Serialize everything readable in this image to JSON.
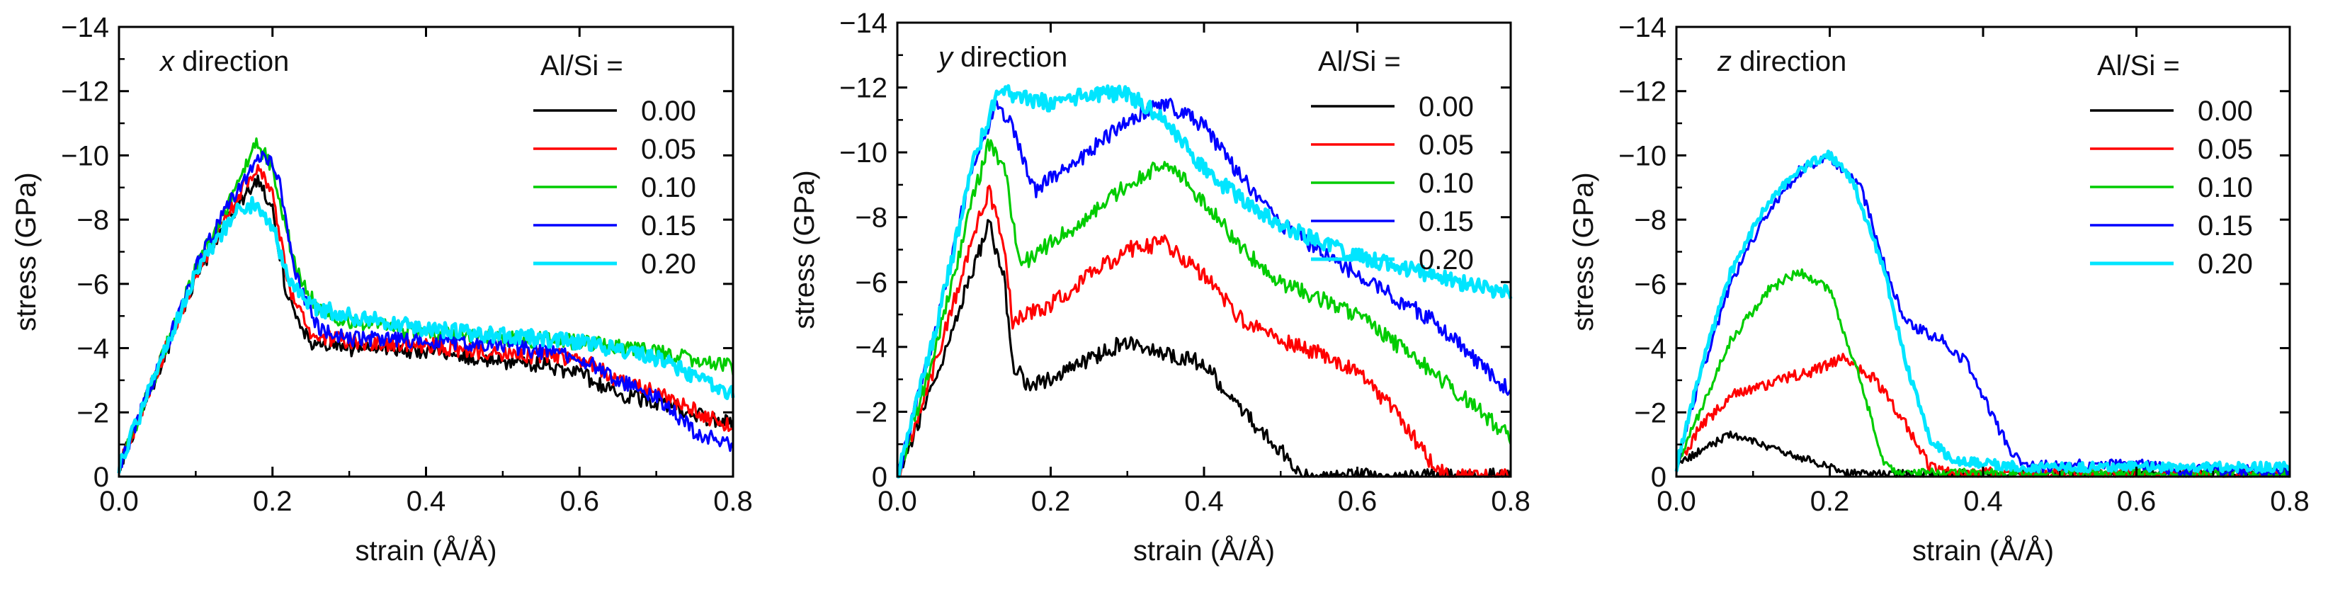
{
  "chart_data": [
    {
      "type": "line",
      "title_var": "x",
      "title_rest": " direction",
      "xlabel": "strain (Å/Å)",
      "ylabel": "stress (GPa)",
      "xlim": [
        0,
        0.8
      ],
      "ylim": [
        0,
        -14
      ],
      "xticks": [
        0.0,
        0.2,
        0.4,
        0.6,
        0.8
      ],
      "xtick_labels": [
        "0.0",
        "0.2",
        "0.4",
        "0.6",
        "0.8"
      ],
      "yticks": [
        0,
        -2,
        -4,
        -6,
        -8,
        -10,
        -12,
        -14
      ],
      "ytick_labels": [
        "0",
        "−2",
        "−4",
        "−6",
        "−8",
        "−10",
        "−12",
        "−14"
      ],
      "legend_title": "Al/Si =",
      "legend_position": "top-right",
      "series": [
        {
          "name": "0.00",
          "color": "#000000",
          "noise": 0.25,
          "points": [
            [
              0,
              -0.3
            ],
            [
              0.05,
              -3.2
            ],
            [
              0.1,
              -6.2
            ],
            [
              0.15,
              -8.3
            ],
            [
              0.18,
              -9.2
            ],
            [
              0.2,
              -8.3
            ],
            [
              0.22,
              -5.5
            ],
            [
              0.25,
              -4.2
            ],
            [
              0.3,
              -4.0
            ],
            [
              0.4,
              -3.9
            ],
            [
              0.5,
              -3.6
            ],
            [
              0.55,
              -3.5
            ],
            [
              0.6,
              -3.2
            ],
            [
              0.65,
              -2.6
            ],
            [
              0.7,
              -2.3
            ],
            [
              0.8,
              -1.6
            ]
          ]
        },
        {
          "name": "0.05",
          "color": "#ff0000",
          "noise": 0.25,
          "points": [
            [
              0,
              -0.3
            ],
            [
              0.05,
              -3.3
            ],
            [
              0.1,
              -6.3
            ],
            [
              0.15,
              -8.5
            ],
            [
              0.18,
              -9.7
            ],
            [
              0.2,
              -8.8
            ],
            [
              0.22,
              -6.0
            ],
            [
              0.25,
              -4.4
            ],
            [
              0.3,
              -4.2
            ],
            [
              0.4,
              -4.1
            ],
            [
              0.5,
              -3.8
            ],
            [
              0.6,
              -3.7
            ],
            [
              0.65,
              -3.0
            ],
            [
              0.7,
              -2.6
            ],
            [
              0.8,
              -1.5
            ]
          ]
        },
        {
          "name": "0.10",
          "color": "#00cc00",
          "noise": 0.25,
          "points": [
            [
              0,
              -0.3
            ],
            [
              0.05,
              -3.3
            ],
            [
              0.1,
              -6.5
            ],
            [
              0.15,
              -8.8
            ],
            [
              0.18,
              -10.4
            ],
            [
              0.2,
              -9.6
            ],
            [
              0.23,
              -6.5
            ],
            [
              0.26,
              -5.2
            ],
            [
              0.3,
              -4.8
            ],
            [
              0.4,
              -4.5
            ],
            [
              0.5,
              -4.3
            ],
            [
              0.6,
              -4.2
            ],
            [
              0.7,
              -3.9
            ],
            [
              0.8,
              -3.4
            ]
          ]
        },
        {
          "name": "0.15",
          "color": "#0000ff",
          "noise": 0.25,
          "points": [
            [
              0,
              -0.3
            ],
            [
              0.05,
              -3.3
            ],
            [
              0.1,
              -6.5
            ],
            [
              0.15,
              -8.8
            ],
            [
              0.19,
              -10.1
            ],
            [
              0.21,
              -9.1
            ],
            [
              0.23,
              -6.2
            ],
            [
              0.26,
              -4.6
            ],
            [
              0.3,
              -4.3
            ],
            [
              0.4,
              -4.2
            ],
            [
              0.5,
              -4.1
            ],
            [
              0.6,
              -3.7
            ],
            [
              0.65,
              -3.0
            ],
            [
              0.7,
              -2.5
            ],
            [
              0.75,
              -1.4
            ],
            [
              0.8,
              -0.9
            ]
          ]
        },
        {
          "name": "0.20",
          "color": "#00e5ff",
          "noise": 0.25,
          "points": [
            [
              0,
              -0.3
            ],
            [
              0.05,
              -3.3
            ],
            [
              0.1,
              -6.3
            ],
            [
              0.15,
              -8.2
            ],
            [
              0.18,
              -8.5
            ],
            [
              0.2,
              -7.8
            ],
            [
              0.22,
              -6.2
            ],
            [
              0.25,
              -5.3
            ],
            [
              0.3,
              -5.0
            ],
            [
              0.4,
              -4.6
            ],
            [
              0.5,
              -4.4
            ],
            [
              0.6,
              -4.2
            ],
            [
              0.7,
              -3.7
            ],
            [
              0.8,
              -2.6
            ]
          ]
        }
      ]
    },
    {
      "type": "line",
      "title_var": "y",
      "title_rest": " direction",
      "xlabel": "strain (Å/Å)",
      "ylabel": "stress (GPa)",
      "xlim": [
        0,
        0.8
      ],
      "ylim": [
        0,
        -14
      ],
      "xticks": [
        0.0,
        0.2,
        0.4,
        0.6,
        0.8
      ],
      "xtick_labels": [
        "0.0",
        "0.2",
        "0.4",
        "0.6",
        "0.8"
      ],
      "yticks": [
        0,
        -2,
        -4,
        -6,
        -8,
        -10,
        -12,
        -14
      ],
      "ytick_labels": [
        "0",
        "−2",
        "−4",
        "−6",
        "−8",
        "−10",
        "−12",
        "−14"
      ],
      "legend_title": "Al/Si =",
      "legend_position": "top-right",
      "series": [
        {
          "name": "0.00",
          "color": "#000000",
          "noise": 0.25,
          "points": [
            [
              0,
              0
            ],
            [
              0.05,
              -3.0
            ],
            [
              0.1,
              -6.5
            ],
            [
              0.12,
              -7.8
            ],
            [
              0.14,
              -6.0
            ],
            [
              0.15,
              -3.5
            ],
            [
              0.17,
              -2.8
            ],
            [
              0.2,
              -3.0
            ],
            [
              0.25,
              -3.6
            ],
            [
              0.3,
              -4.2
            ],
            [
              0.35,
              -3.8
            ],
            [
              0.4,
              -3.5
            ],
            [
              0.45,
              -2.0
            ],
            [
              0.5,
              -0.8
            ],
            [
              0.53,
              0
            ],
            [
              0.8,
              0
            ]
          ]
        },
        {
          "name": "0.05",
          "color": "#ff0000",
          "noise": 0.25,
          "points": [
            [
              0,
              0
            ],
            [
              0.05,
              -3.5
            ],
            [
              0.1,
              -7.5
            ],
            [
              0.12,
              -8.8
            ],
            [
              0.14,
              -7.0
            ],
            [
              0.15,
              -4.8
            ],
            [
              0.2,
              -5.3
            ],
            [
              0.25,
              -6.2
            ],
            [
              0.3,
              -7.0
            ],
            [
              0.35,
              -7.2
            ],
            [
              0.4,
              -6.2
            ],
            [
              0.45,
              -4.8
            ],
            [
              0.5,
              -4.2
            ],
            [
              0.55,
              -3.8
            ],
            [
              0.6,
              -3.2
            ],
            [
              0.65,
              -2.0
            ],
            [
              0.7,
              -0.3
            ],
            [
              0.72,
              0
            ],
            [
              0.8,
              0
            ]
          ]
        },
        {
          "name": "0.10",
          "color": "#00cc00",
          "noise": 0.25,
          "points": [
            [
              0,
              0
            ],
            [
              0.05,
              -4.0
            ],
            [
              0.1,
              -8.7
            ],
            [
              0.12,
              -10.3
            ],
            [
              0.14,
              -9.5
            ],
            [
              0.16,
              -6.5
            ],
            [
              0.2,
              -7.2
            ],
            [
              0.25,
              -8.0
            ],
            [
              0.3,
              -9.0
            ],
            [
              0.35,
              -9.7
            ],
            [
              0.4,
              -8.5
            ],
            [
              0.45,
              -7.0
            ],
            [
              0.5,
              -6.0
            ],
            [
              0.6,
              -5.0
            ],
            [
              0.7,
              -3.2
            ],
            [
              0.75,
              -2.2
            ],
            [
              0.8,
              -1.2
            ]
          ]
        },
        {
          "name": "0.15",
          "color": "#0000ff",
          "noise": 0.25,
          "points": [
            [
              0,
              0
            ],
            [
              0.05,
              -4.5
            ],
            [
              0.1,
              -9.8
            ],
            [
              0.13,
              -11.5
            ],
            [
              0.15,
              -10.8
            ],
            [
              0.18,
              -8.8
            ],
            [
              0.2,
              -9.2
            ],
            [
              0.25,
              -10.0
            ],
            [
              0.3,
              -11.0
            ],
            [
              0.35,
              -11.5
            ],
            [
              0.4,
              -10.8
            ],
            [
              0.45,
              -9.2
            ],
            [
              0.5,
              -7.8
            ],
            [
              0.55,
              -7.0
            ],
            [
              0.6,
              -6.2
            ],
            [
              0.7,
              -4.8
            ],
            [
              0.8,
              -2.6
            ]
          ]
        },
        {
          "name": "0.20",
          "color": "#00e5ff",
          "noise": 0.25,
          "points": [
            [
              0,
              0
            ],
            [
              0.05,
              -4.5
            ],
            [
              0.1,
              -9.8
            ],
            [
              0.13,
              -11.8
            ],
            [
              0.15,
              -11.8
            ],
            [
              0.2,
              -11.5
            ],
            [
              0.25,
              -11.8
            ],
            [
              0.3,
              -11.8
            ],
            [
              0.35,
              -11.0
            ],
            [
              0.4,
              -9.5
            ],
            [
              0.45,
              -8.5
            ],
            [
              0.5,
              -7.8
            ],
            [
              0.55,
              -7.2
            ],
            [
              0.6,
              -6.8
            ],
            [
              0.7,
              -6.2
            ],
            [
              0.8,
              -5.6
            ]
          ]
        }
      ]
    },
    {
      "type": "line",
      "title_var": "z",
      "title_rest": " direction",
      "xlabel": "strain (Å/Å)",
      "ylabel": "stress (GPa)",
      "xlim": [
        0,
        0.8
      ],
      "ylim": [
        0,
        -14
      ],
      "xticks": [
        0.0,
        0.2,
        0.4,
        0.6,
        0.8
      ],
      "xtick_labels": [
        "0.0",
        "0.2",
        "0.4",
        "0.6",
        "0.8"
      ],
      "yticks": [
        0,
        -2,
        -4,
        -6,
        -8,
        -10,
        -12,
        -14
      ],
      "ytick_labels": [
        "0",
        "−2",
        "−4",
        "−6",
        "−8",
        "−10",
        "−12",
        "−14"
      ],
      "legend_title": "Al/Si =",
      "legend_position": "top-right",
      "series": [
        {
          "name": "0.00",
          "color": "#000000",
          "noise": 0.12,
          "points": [
            [
              0,
              -0.3
            ],
            [
              0.03,
              -0.8
            ],
            [
              0.07,
              -1.3
            ],
            [
              0.1,
              -1.1
            ],
            [
              0.15,
              -0.7
            ],
            [
              0.2,
              -0.3
            ],
            [
              0.22,
              -0.1
            ],
            [
              0.8,
              -0.1
            ]
          ]
        },
        {
          "name": "0.05",
          "color": "#ff0000",
          "noise": 0.18,
          "points": [
            [
              0,
              -0.3
            ],
            [
              0.03,
              -1.5
            ],
            [
              0.07,
              -2.5
            ],
            [
              0.12,
              -2.9
            ],
            [
              0.18,
              -3.3
            ],
            [
              0.22,
              -3.7
            ],
            [
              0.26,
              -3.0
            ],
            [
              0.3,
              -1.6
            ],
            [
              0.33,
              -0.3
            ],
            [
              0.36,
              -0.1
            ],
            [
              0.8,
              -0.1
            ]
          ]
        },
        {
          "name": "0.10",
          "color": "#00cc00",
          "noise": 0.15,
          "points": [
            [
              0,
              -0.3
            ],
            [
              0.03,
              -2.0
            ],
            [
              0.07,
              -4.2
            ],
            [
              0.12,
              -5.8
            ],
            [
              0.16,
              -6.4
            ],
            [
              0.2,
              -5.8
            ],
            [
              0.24,
              -3.0
            ],
            [
              0.27,
              -0.5
            ],
            [
              0.29,
              -0.1
            ],
            [
              0.8,
              -0.1
            ]
          ]
        },
        {
          "name": "0.15",
          "color": "#0000ff",
          "noise": 0.18,
          "points": [
            [
              0,
              -0.3
            ],
            [
              0.03,
              -3.0
            ],
            [
              0.07,
              -6.0
            ],
            [
              0.12,
              -8.3
            ],
            [
              0.16,
              -9.5
            ],
            [
              0.2,
              -10.0
            ],
            [
              0.24,
              -9.0
            ],
            [
              0.28,
              -6.0
            ],
            [
              0.3,
              -4.8
            ],
            [
              0.35,
              -4.2
            ],
            [
              0.38,
              -3.5
            ],
            [
              0.42,
              -1.5
            ],
            [
              0.45,
              -0.3
            ],
            [
              0.6,
              -0.4
            ],
            [
              0.65,
              -0.2
            ],
            [
              0.8,
              -0.2
            ]
          ]
        },
        {
          "name": "0.20",
          "color": "#00e5ff",
          "noise": 0.15,
          "points": [
            [
              0,
              -0.3
            ],
            [
              0.03,
              -3.2
            ],
            [
              0.07,
              -6.3
            ],
            [
              0.12,
              -8.6
            ],
            [
              0.17,
              -9.7
            ],
            [
              0.2,
              -10.0
            ],
            [
              0.23,
              -9.2
            ],
            [
              0.27,
              -6.5
            ],
            [
              0.3,
              -3.5
            ],
            [
              0.33,
              -1.2
            ],
            [
              0.36,
              -0.5
            ],
            [
              0.45,
              -0.3
            ],
            [
              0.8,
              -0.3
            ]
          ]
        }
      ]
    }
  ]
}
